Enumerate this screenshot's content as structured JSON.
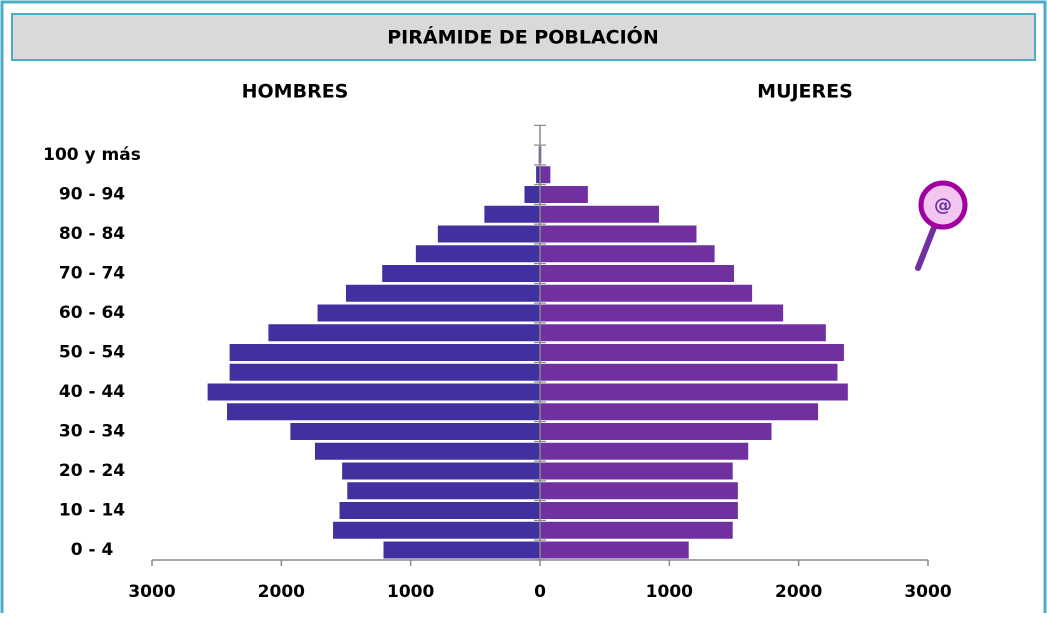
{
  "chart_data": {
    "type": "pyramid",
    "title": "PIRÁMIDE DE POBLACIÓN",
    "categories": [
      "0 - 4",
      null,
      "10 - 14",
      null,
      "20 - 24",
      null,
      "30 - 34",
      null,
      "40 - 44",
      null,
      "50 - 54",
      null,
      "60 - 64",
      null,
      "70 - 74",
      null,
      "80 - 84",
      null,
      "90 - 94",
      null,
      "100 y más"
    ],
    "series": [
      {
        "name": "HOMBRES",
        "color": "#4130a0",
        "values": [
          -1210,
          -1600,
          -1550,
          -1490,
          -1530,
          -1740,
          -1930,
          -2420,
          -2570,
          -2400,
          -2400,
          -2100,
          -1720,
          -1500,
          -1220,
          -960,
          -790,
          -430,
          -120,
          -30,
          -10
        ]
      },
      {
        "name": "MUJERES",
        "color": "#7030a0",
        "values": [
          1150,
          1490,
          1530,
          1530,
          1490,
          1610,
          1790,
          2150,
          2380,
          2300,
          2350,
          2210,
          1880,
          1640,
          1500,
          1350,
          1210,
          920,
          370,
          80,
          10
        ]
      }
    ],
    "xlim": [
      -3000,
      3000
    ],
    "xticks": [
      {
        "value": -3000,
        "label": "3000"
      },
      {
        "value": -2000,
        "label": "2000"
      },
      {
        "value": -1000,
        "label": "1000"
      },
      0,
      1000,
      2000,
      3000
    ]
  }
}
